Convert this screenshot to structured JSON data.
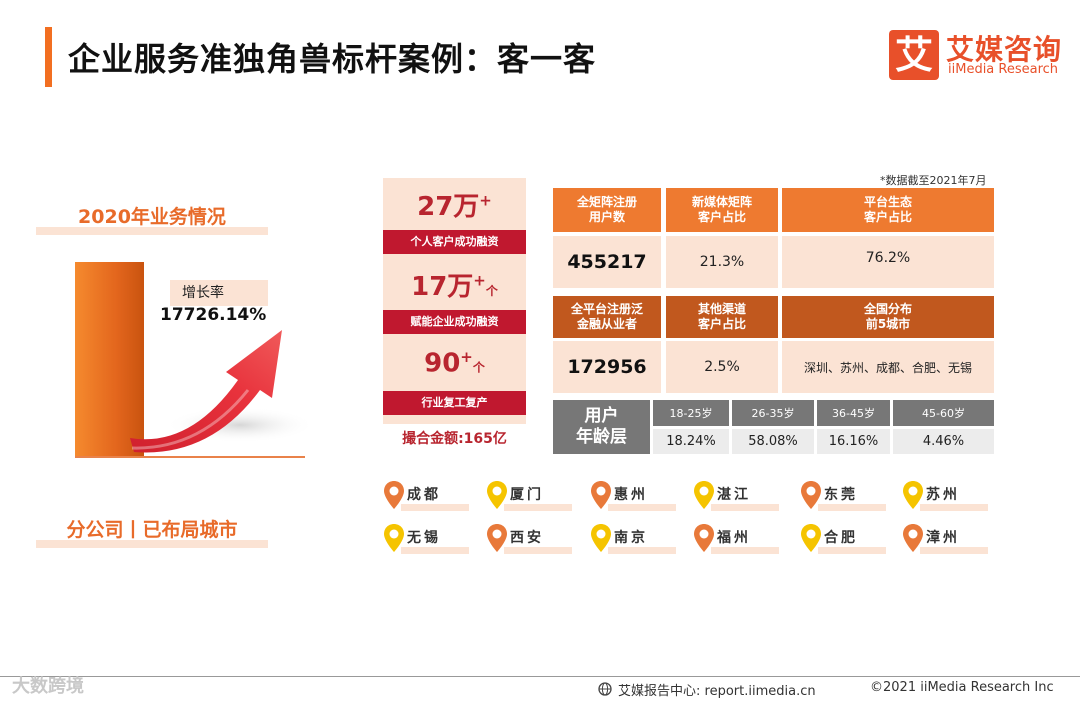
{
  "header": {
    "title": "企业服务准独角兽标杆案例：客一客",
    "logo_mark": "艾",
    "logo_cn": "艾媒咨询",
    "logo_en": "iiMedia Research"
  },
  "left": {
    "business_title": "2020年业务情况",
    "growth_label": "增长率",
    "growth_value": "17726.14%",
    "branch_title": "分公司丨已布局城市"
  },
  "stats": [
    {
      "number": "27万",
      "sup": "+",
      "suffix": "",
      "caption": "个人客户成功融资"
    },
    {
      "number": "17万",
      "sup": "+",
      "suffix": "个",
      "caption": "赋能企业成功融资"
    },
    {
      "number": "90",
      "sup": "+",
      "suffix": "个",
      "caption": "行业复工复产"
    }
  ],
  "total": "撮合金额:165亿",
  "note": "*数据截至2021年7月",
  "table": {
    "row1_headers": [
      "全矩阵注册\n用户数",
      "新媒体矩阵\n客户占比",
      "平台生态\n客户占比"
    ],
    "row1_values": [
      "455217",
      "21.3%",
      "76.2%"
    ],
    "row2_headers": [
      "全平台注册泛\n金融从业者",
      "其他渠道\n客户占比",
      "全国分布\n前5城市"
    ],
    "row2_values": [
      "172956",
      "2.5%",
      "深圳、苏州、成都、合肥、无锡"
    ],
    "age_label": "用户\n年龄层",
    "age_groups": [
      "18-25岁",
      "26-35岁",
      "36-45岁",
      "45-60岁"
    ],
    "age_values": [
      "18.24%",
      "58.08%",
      "16.16%",
      "4.46%"
    ]
  },
  "cities": [
    {
      "name": "成都",
      "pin_color": "#e8793a"
    },
    {
      "name": "厦门",
      "pin_color": "#f5c400"
    },
    {
      "name": "惠州",
      "pin_color": "#e8793a"
    },
    {
      "name": "湛江",
      "pin_color": "#f5c400"
    },
    {
      "name": "东莞",
      "pin_color": "#e8793a"
    },
    {
      "name": "苏州",
      "pin_color": "#f5c400"
    },
    {
      "name": "无锡",
      "pin_color": "#f5c400"
    },
    {
      "name": "西安",
      "pin_color": "#e8793a"
    },
    {
      "name": "南京",
      "pin_color": "#f5c400"
    },
    {
      "name": "福州",
      "pin_color": "#e8793a"
    },
    {
      "name": "合肥",
      "pin_color": "#f5c400"
    },
    {
      "name": "漳州",
      "pin_color": "#e8793a"
    }
  ],
  "footer": {
    "report": "艾媒报告中心: report.iimedia.cn",
    "copyright": "©2021  iiMedia Research  Inc",
    "watermark": "大数跨境"
  },
  "colors": {
    "accent": "#f26f21",
    "header_orange": "#ee7a30",
    "header_dark": "#c1581e",
    "pale": "#fbe3d4",
    "red": "#c0182f"
  }
}
